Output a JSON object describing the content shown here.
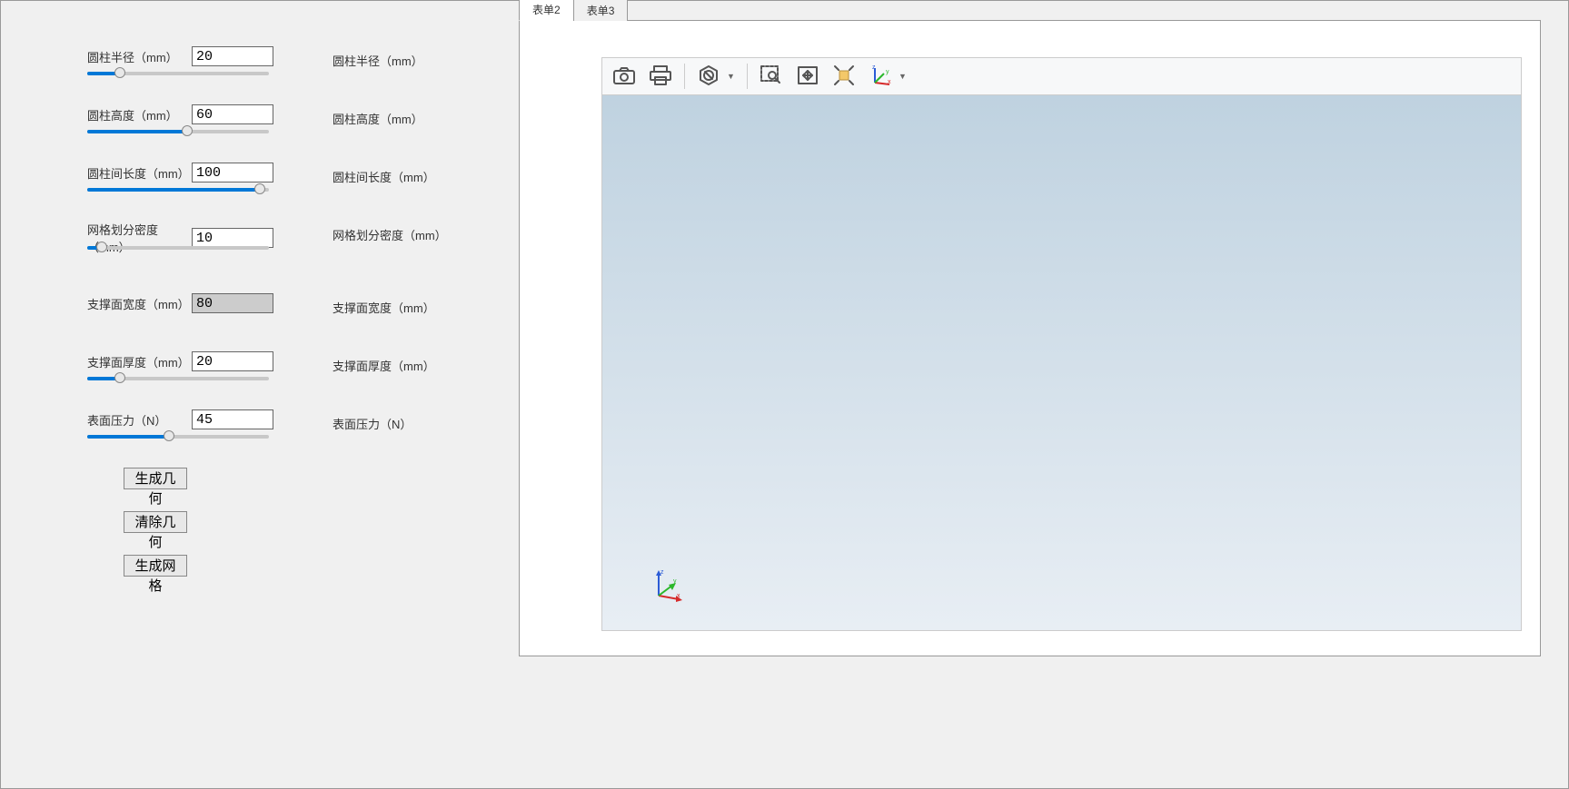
{
  "params": [
    {
      "key": "radius",
      "label": "圆柱半径（mm）",
      "display": "圆柱半径（mm）",
      "value": "20",
      "slider_pct": 18,
      "disabled": false
    },
    {
      "key": "height",
      "label": "圆柱高度（mm）",
      "display": "圆柱高度（mm）",
      "value": "60",
      "slider_pct": 55,
      "disabled": false
    },
    {
      "key": "spacing",
      "label": "圆柱间长度（mm）",
      "display": "圆柱间长度（mm）",
      "value": "100",
      "slider_pct": 95,
      "disabled": false
    },
    {
      "key": "mesh",
      "label": "网格划分密度（mm）",
      "display": "网格划分密度（mm）",
      "value": "10",
      "slider_pct": 8,
      "disabled": false
    },
    {
      "key": "sup_w",
      "label": "支撑面宽度（mm）",
      "display": "支撑面宽度（mm）",
      "value": "80",
      "slider_pct": 0,
      "disabled": true,
      "no_slider": true
    },
    {
      "key": "sup_t",
      "label": "支撑面厚度（mm）",
      "display": "支撑面厚度（mm）",
      "value": "20",
      "slider_pct": 18,
      "disabled": false
    },
    {
      "key": "pressure",
      "label": "表面压力（N）",
      "display": "表面压力（N）",
      "value": "45",
      "slider_pct": 45,
      "disabled": false
    }
  ],
  "buttons": {
    "gen_geom": "生成几何",
    "clear_geom": "清除几何",
    "gen_mesh": "生成网格"
  },
  "tabs": [
    {
      "id": "form2",
      "label": "表单2",
      "active": true
    },
    {
      "id": "form3",
      "label": "表单3",
      "active": false
    }
  ],
  "toolbar_icons": [
    "camera",
    "print",
    "sep",
    "nosign",
    "caret",
    "sep",
    "zoom-box",
    "fit",
    "expand",
    "axes",
    "caret"
  ],
  "colors": {
    "viewport_top": "#bfd2e0",
    "viewport_bottom": "#e8eef4",
    "slider_fill": "#0078d7",
    "axis_x": "#d62b2b",
    "axis_y": "#2bb82b",
    "axis_z": "#2b5bd6"
  }
}
